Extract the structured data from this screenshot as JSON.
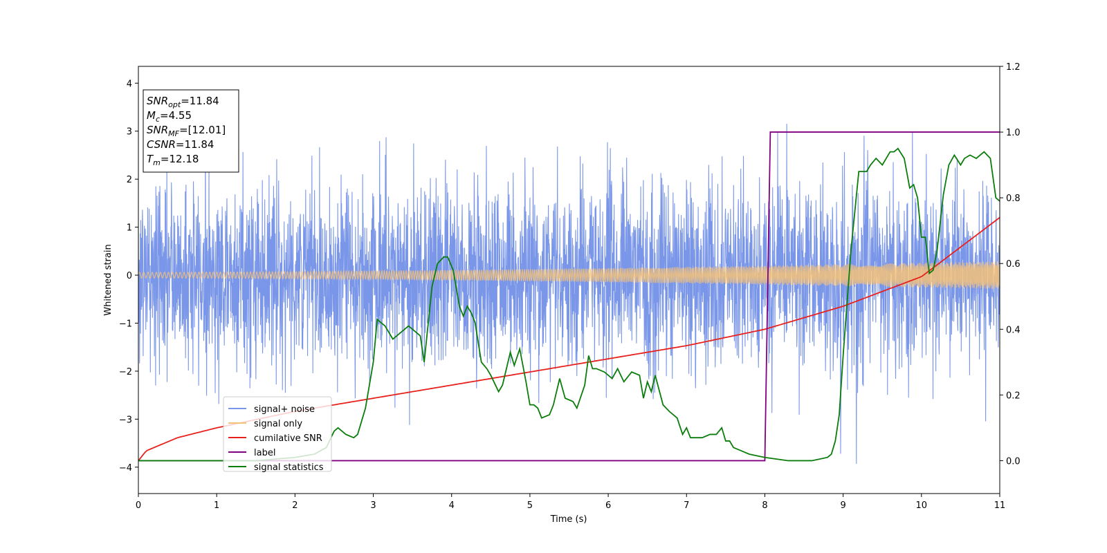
{
  "chart_data": {
    "type": "line",
    "xlabel": "Time (s)",
    "ylabel": "Whitened strain",
    "xlim": [
      0,
      11
    ],
    "ylim": [
      -4.55,
      4.35
    ],
    "y2lim": [
      -0.1,
      1.2
    ],
    "x_ticks": [
      "0",
      "1",
      "2",
      "3",
      "4",
      "5",
      "6",
      "7",
      "8",
      "9",
      "10",
      "11"
    ],
    "y_ticks": [
      "4",
      "3",
      "2",
      "1",
      "0",
      "−1",
      "−2",
      "−3",
      "−4"
    ],
    "y2_ticks": [
      "1.2",
      "1.0",
      "0.8",
      "0.6",
      "0.4",
      "0.2",
      "0.0"
    ],
    "info_box": [
      {
        "name": "SNR",
        "sub": "opt",
        "value": "=11.84"
      },
      {
        "name": "M",
        "sub": "c",
        "value": "=4.55"
      },
      {
        "name": "SNR",
        "sub": "MF",
        "value": "=[12.01]"
      },
      {
        "name": "CSNR",
        "sub": "",
        "value": "=11.84"
      },
      {
        "name": "T",
        "sub": "m",
        "value": "=12.18"
      }
    ],
    "legend_position": "lower-left",
    "series": [
      {
        "name": "signal+ noise",
        "color": "#7a96e8",
        "axis": "left",
        "noise_std": 0.95,
        "duration_s": 11
      },
      {
        "name": "signal only",
        "color": "#f5c27a",
        "axis": "left",
        "amplitude_start": 0.06,
        "amplitude_end": 0.29
      },
      {
        "name": "cumilative SNR",
        "color": "#e8201c",
        "axis": "right",
        "x": [
          0,
          0.1,
          0.5,
          1,
          2,
          3,
          4,
          5,
          6,
          7,
          8,
          9,
          10,
          11
        ],
        "y": [
          0.0,
          0.03,
          0.07,
          0.1,
          0.15,
          0.19,
          0.23,
          0.27,
          0.31,
          0.35,
          0.4,
          0.47,
          0.56,
          0.74
        ]
      },
      {
        "name": "label",
        "color": "#800080",
        "axis": "right",
        "x": [
          0,
          8.0,
          8.07,
          11
        ],
        "y": [
          0.0,
          0.0,
          1.0,
          1.0
        ]
      },
      {
        "name": "signal statistics",
        "color": "#0a7d0a",
        "axis": "right",
        "x": [
          0,
          0.5,
          1,
          1.5,
          2,
          2.25,
          2.4,
          2.5,
          2.55,
          2.65,
          2.75,
          2.8,
          2.9,
          3.0,
          3.05,
          3.15,
          3.25,
          3.35,
          3.45,
          3.5,
          3.6,
          3.65,
          3.75,
          3.82,
          3.9,
          3.95,
          4.02,
          4.1,
          4.15,
          4.2,
          4.25,
          4.3,
          4.38,
          4.45,
          4.5,
          4.6,
          4.65,
          4.75,
          4.8,
          4.87,
          4.95,
          5.0,
          5.05,
          5.1,
          5.15,
          5.25,
          5.3,
          5.38,
          5.45,
          5.55,
          5.6,
          5.7,
          5.75,
          5.8,
          5.85,
          5.95,
          6.05,
          6.12,
          6.2,
          6.3,
          6.4,
          6.45,
          6.5,
          6.55,
          6.6,
          6.7,
          6.78,
          6.88,
          6.95,
          7.0,
          7.05,
          7.12,
          7.2,
          7.3,
          7.38,
          7.45,
          7.5,
          7.55,
          7.6,
          7.7,
          7.8,
          8.0,
          8.3,
          8.6,
          8.8,
          8.85,
          8.9,
          8.95,
          9.0,
          9.1,
          9.2,
          9.3,
          9.35,
          9.42,
          9.5,
          9.6,
          9.65,
          9.7,
          9.78,
          9.85,
          9.9,
          9.95,
          10.0,
          10.05,
          10.1,
          10.15,
          10.2,
          10.28,
          10.35,
          10.42,
          10.5,
          10.55,
          10.62,
          10.7,
          10.8,
          10.88,
          10.95,
          11.0
        ],
        "y": [
          0.0,
          0.0,
          0.0,
          0.0,
          0.01,
          0.02,
          0.04,
          0.09,
          0.1,
          0.08,
          0.07,
          0.08,
          0.16,
          0.3,
          0.43,
          0.41,
          0.37,
          0.39,
          0.41,
          0.4,
          0.38,
          0.3,
          0.53,
          0.6,
          0.62,
          0.62,
          0.58,
          0.47,
          0.44,
          0.47,
          0.45,
          0.42,
          0.3,
          0.28,
          0.26,
          0.21,
          0.23,
          0.33,
          0.29,
          0.34,
          0.24,
          0.17,
          0.17,
          0.16,
          0.13,
          0.14,
          0.17,
          0.25,
          0.19,
          0.18,
          0.16,
          0.23,
          0.32,
          0.28,
          0.28,
          0.27,
          0.25,
          0.28,
          0.24,
          0.27,
          0.26,
          0.19,
          0.24,
          0.21,
          0.26,
          0.17,
          0.15,
          0.13,
          0.08,
          0.1,
          0.07,
          0.07,
          0.07,
          0.08,
          0.08,
          0.1,
          0.06,
          0.06,
          0.04,
          0.03,
          0.02,
          0.01,
          0.0,
          0.0,
          0.01,
          0.02,
          0.06,
          0.14,
          0.32,
          0.64,
          0.88,
          0.88,
          0.9,
          0.92,
          0.9,
          0.94,
          0.94,
          0.95,
          0.92,
          0.83,
          0.84,
          0.8,
          0.68,
          0.68,
          0.57,
          0.58,
          0.64,
          0.81,
          0.9,
          0.93,
          0.9,
          0.92,
          0.93,
          0.92,
          0.94,
          0.92,
          0.8,
          0.79
        ]
      }
    ]
  }
}
